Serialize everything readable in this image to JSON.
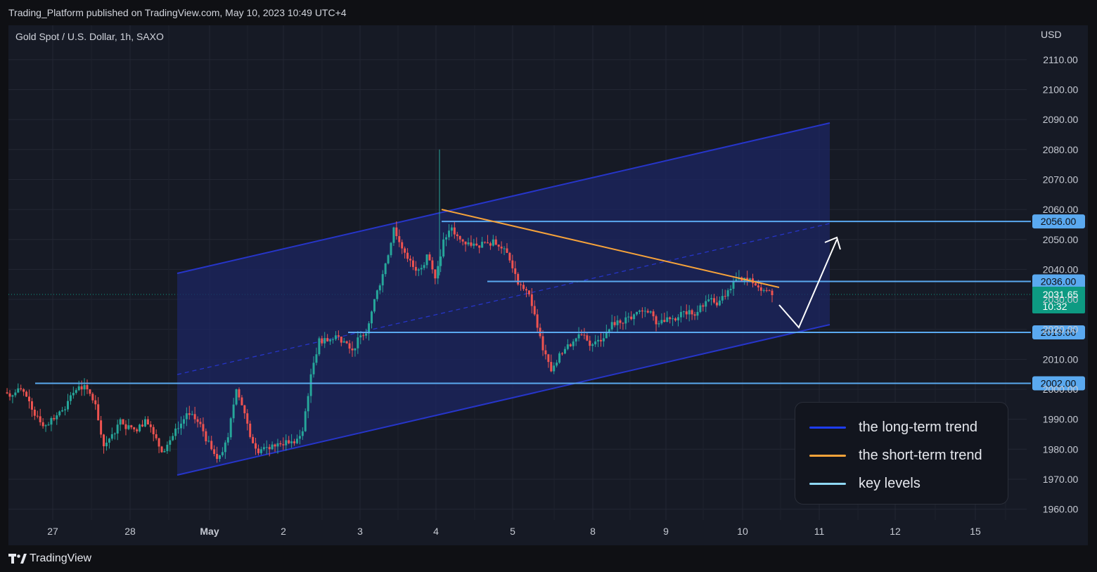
{
  "header": {
    "publish_line": "Trading_Platform published on TradingView.com, May 10, 2023 10:49 UTC+4"
  },
  "chart": {
    "symbol": "Gold Spot / U.S. Dollar, 1h, SAXO",
    "currency": "USD"
  },
  "legend": {
    "items": [
      {
        "label": "the long-term trend",
        "color": "#1e3df5"
      },
      {
        "label": "the short-term trend",
        "color": "#f7a33a"
      },
      {
        "label": "key levels",
        "color": "#8fd8f5"
      }
    ]
  },
  "footer": {
    "brand": "TradingView"
  },
  "colors": {
    "up": "#26a69a",
    "down": "#ef5350",
    "channel_fill": "#1c2562",
    "channel_line": "#2635c9",
    "short_trend": "#f7a33a",
    "key_level": "#5aa9f0",
    "price_badge": "#0d9a82",
    "forecast_arrow": "#ffffff"
  },
  "chart_data": {
    "type": "candlestick",
    "ylim": [
      1955,
      2118
    ],
    "y_ticks": [
      1960,
      1970,
      1980,
      1990,
      2000,
      2010,
      2020,
      2030,
      2040,
      2050,
      2060,
      2070,
      2080,
      2090,
      2100,
      2110
    ],
    "x_tick_labels": [
      "27",
      "28",
      "May",
      "2",
      "3",
      "4",
      "5",
      "8",
      "9",
      "10",
      "11",
      "12",
      "15"
    ],
    "key_levels": [
      2056.0,
      2036.0,
      2019.0,
      2002.0
    ],
    "last_price": "2031.65",
    "countdown": "10:32",
    "candle_close_path": [
      1998,
      2000,
      1996,
      1991,
      1988,
      1990,
      1993,
      1998,
      2001,
      2000,
      1995,
      1981,
      1985,
      1990,
      1988,
      1986,
      1990,
      1985,
      1979,
      1983,
      1987,
      1992,
      1990,
      1986,
      1980,
      1978,
      1984,
      2000,
      1992,
      1982,
      1980,
      1980,
      1982,
      1983,
      1982,
      1986,
      2005,
      2017,
      2016,
      2018,
      2016,
      2013,
      2018,
      2022,
      2033,
      2042,
      2054,
      2047,
      2043,
      2040,
      2045,
      2037,
      2050,
      2054,
      2050,
      2049,
      2048,
      2049,
      2050,
      2047,
      2043,
      2035,
      2033,
      2025,
      2013,
      2006,
      2012,
      2015,
      2017,
      2018,
      2015,
      2016,
      2020,
      2023,
      2024,
      2025,
      2026,
      2026,
      2022,
      2024,
      2023,
      2026,
      2025,
      2028,
      2030,
      2028,
      2031,
      2036,
      2036,
      2037,
      2034,
      2033,
      2031.65
    ]
  }
}
